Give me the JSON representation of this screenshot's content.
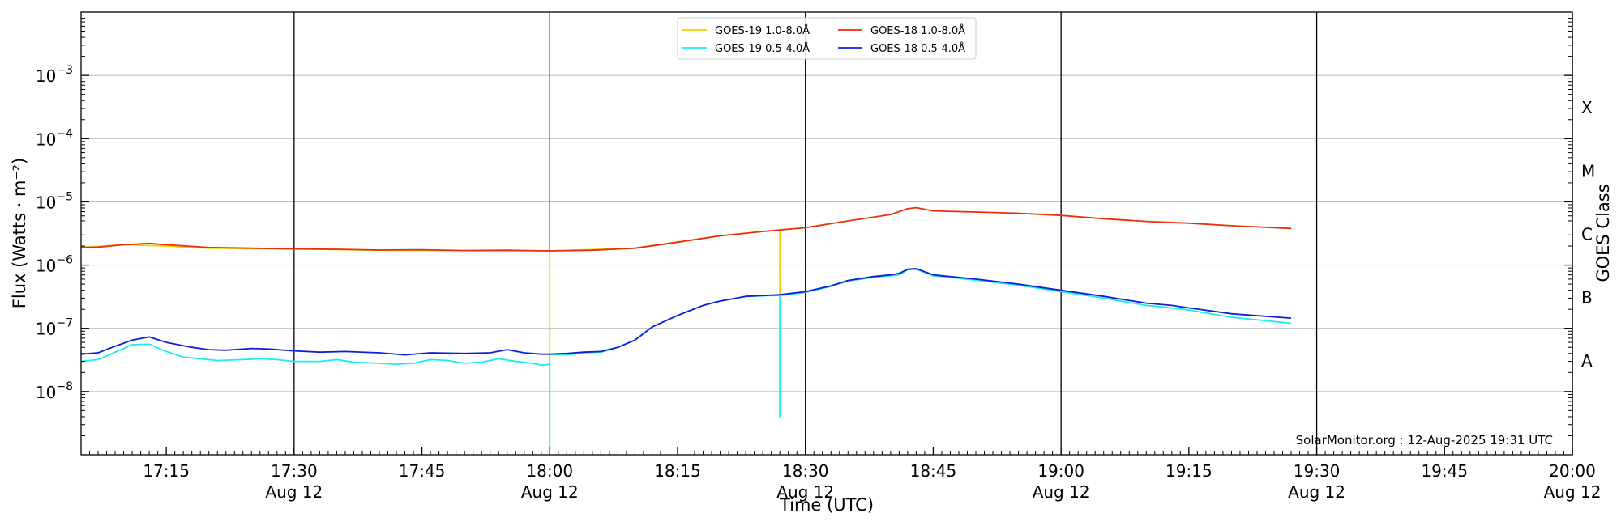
{
  "chart_data": {
    "type": "line",
    "xlabel": "Time (UTC)",
    "ylabel": "Flux (Watts · m⁻²)",
    "right_label": "GOES Class",
    "y_scale": "log",
    "ylim": [
      1e-09,
      0.01
    ],
    "xlim": [
      "2025-08-12 17:05",
      "2025-08-12 20:00"
    ],
    "grid": "horizontal at decades; vertical lines every 30 minutes",
    "legend_position": "top-center",
    "x_ticks": [
      {
        "time": "17:15",
        "date": ""
      },
      {
        "time": "17:30",
        "date": "Aug 12"
      },
      {
        "time": "17:45",
        "date": ""
      },
      {
        "time": "18:00",
        "date": "Aug 12"
      },
      {
        "time": "18:15",
        "date": ""
      },
      {
        "time": "18:30",
        "date": "Aug 12"
      },
      {
        "time": "18:45",
        "date": ""
      },
      {
        "time": "19:00",
        "date": "Aug 12"
      },
      {
        "time": "19:15",
        "date": ""
      },
      {
        "time": "19:30",
        "date": "Aug 12"
      },
      {
        "time": "19:45",
        "date": ""
      },
      {
        "time": "20:00",
        "date": "Aug 12"
      }
    ],
    "y_ticks": [
      {
        "exp": "-8",
        "value": 1e-08
      },
      {
        "exp": "-7",
        "value": 1e-07
      },
      {
        "exp": "-6",
        "value": 1e-06
      },
      {
        "exp": "-5",
        "value": 1e-05
      },
      {
        "exp": "-4",
        "value": 0.0001
      },
      {
        "exp": "-3",
        "value": 0.001
      }
    ],
    "goes_classes": [
      "A",
      "B",
      "C",
      "M",
      "X"
    ],
    "series": [
      {
        "name": "GOES-19 1.0-8.0Å",
        "color": "#f2d000",
        "points": [
          [
            "17:05",
            1.9e-06
          ],
          [
            "17:10",
            2.1e-06
          ],
          [
            "17:15",
            2e-06
          ],
          [
            "17:20",
            1.85e-06
          ],
          [
            "17:30",
            1.8e-06
          ],
          [
            "17:40",
            1.72e-06
          ],
          [
            "17:50",
            1.7e-06
          ],
          [
            "17:59",
            1.68e-06
          ],
          [
            "18:00",
            1.68e-06
          ],
          [
            "18:00",
            1.2e-09
          ],
          [
            "18:00",
            1.68e-06
          ],
          [
            "18:10",
            1.85e-06
          ],
          [
            "18:20",
            2.9e-06
          ],
          [
            "18:26",
            3.5e-06
          ],
          [
            "18:27",
            3.6e-06
          ],
          [
            "18:27",
            4e-09
          ],
          [
            "18:27",
            3.6e-06
          ],
          [
            "18:30",
            3.9e-06
          ]
        ]
      },
      {
        "name": "GOES-18 1.0-8.0Å",
        "color": "#e8300a",
        "points": [
          [
            "17:05",
            1.9e-06
          ],
          [
            "17:07",
            1.92e-06
          ],
          [
            "17:10",
            2.1e-06
          ],
          [
            "17:13",
            2.2e-06
          ],
          [
            "17:15",
            2.1e-06
          ],
          [
            "17:20",
            1.9e-06
          ],
          [
            "17:25",
            1.85e-06
          ],
          [
            "17:30",
            1.8e-06
          ],
          [
            "17:35",
            1.78e-06
          ],
          [
            "17:40",
            1.73e-06
          ],
          [
            "17:45",
            1.75e-06
          ],
          [
            "17:50",
            1.7e-06
          ],
          [
            "17:55",
            1.72e-06
          ],
          [
            "18:00",
            1.68e-06
          ],
          [
            "18:05",
            1.72e-06
          ],
          [
            "18:10",
            1.85e-06
          ],
          [
            "18:15",
            2.3e-06
          ],
          [
            "18:20",
            2.9e-06
          ],
          [
            "18:25",
            3.4e-06
          ],
          [
            "18:30",
            3.9e-06
          ],
          [
            "18:35",
            5e-06
          ],
          [
            "18:40",
            6.3e-06
          ],
          [
            "18:42",
            7.8e-06
          ],
          [
            "18:43",
            8.1e-06
          ],
          [
            "18:45",
            7.2e-06
          ],
          [
            "18:50",
            6.9e-06
          ],
          [
            "18:55",
            6.6e-06
          ],
          [
            "19:00",
            6.1e-06
          ],
          [
            "19:05",
            5.4e-06
          ],
          [
            "19:10",
            4.9e-06
          ],
          [
            "19:15",
            4.6e-06
          ],
          [
            "19:20",
            4.2e-06
          ],
          [
            "19:27",
            3.8e-06
          ]
        ]
      },
      {
        "name": "GOES-19 0.5-4.0Å",
        "color": "#19ecef",
        "points": [
          [
            "17:05",
            3e-08
          ],
          [
            "17:07",
            3.2e-08
          ],
          [
            "17:09",
            4.2e-08
          ],
          [
            "17:11",
            5.5e-08
          ],
          [
            "17:13",
            5.6e-08
          ],
          [
            "17:15",
            4.3e-08
          ],
          [
            "17:17",
            3.5e-08
          ],
          [
            "17:19",
            3.3e-08
          ],
          [
            "17:21",
            3.1e-08
          ],
          [
            "17:24",
            3.2e-08
          ],
          [
            "17:26",
            3.3e-08
          ],
          [
            "17:28",
            3.2e-08
          ],
          [
            "17:30",
            3e-08
          ],
          [
            "17:33",
            3e-08
          ],
          [
            "17:35",
            3.2e-08
          ],
          [
            "17:37",
            2.9e-08
          ],
          [
            "17:40",
            2.8e-08
          ],
          [
            "17:42",
            2.7e-08
          ],
          [
            "17:44",
            2.8e-08
          ],
          [
            "17:46",
            3.2e-08
          ],
          [
            "17:48",
            3.1e-08
          ],
          [
            "17:50",
            2.8e-08
          ],
          [
            "17:52",
            2.9e-08
          ],
          [
            "17:54",
            3.3e-08
          ],
          [
            "17:56",
            3e-08
          ],
          [
            "17:58",
            2.8e-08
          ],
          [
            "17:59",
            2.6e-08
          ],
          [
            "18:00",
            2.7e-08
          ],
          [
            "18:00",
            1.2e-09
          ],
          [
            "18:00",
            3.9e-08
          ],
          [
            "18:02",
            3.8e-08
          ],
          [
            "18:04",
            4.1e-08
          ],
          [
            "18:06",
            4.2e-08
          ],
          [
            "18:08",
            5e-08
          ],
          [
            "18:10",
            6.5e-08
          ],
          [
            "18:12",
            1.05e-07
          ],
          [
            "18:15",
            1.6e-07
          ],
          [
            "18:18",
            2.3e-07
          ],
          [
            "18:20",
            2.7e-07
          ],
          [
            "18:23",
            3.2e-07
          ],
          [
            "18:26",
            3.3e-07
          ],
          [
            "18:27",
            3.3e-07
          ],
          [
            "18:27",
            4e-09
          ],
          [
            "18:27",
            3.3e-07
          ],
          [
            "18:30",
            3.7e-07
          ],
          [
            "18:33",
            4.6e-07
          ],
          [
            "18:35",
            5.6e-07
          ],
          [
            "18:38",
            6.4e-07
          ],
          [
            "18:40",
            6.8e-07
          ],
          [
            "18:41",
            7e-07
          ],
          [
            "18:42",
            8.4e-07
          ],
          [
            "18:43",
            8.6e-07
          ],
          [
            "18:45",
            6.8e-07
          ],
          [
            "18:50",
            5.8e-07
          ],
          [
            "18:55",
            4.8e-07
          ],
          [
            "19:00",
            3.8e-07
          ],
          [
            "19:05",
            3e-07
          ],
          [
            "19:10",
            2.3e-07
          ],
          [
            "19:13",
            2.1e-07
          ],
          [
            "19:15",
            1.95e-07
          ],
          [
            "19:20",
            1.5e-07
          ],
          [
            "19:27",
            1.2e-07
          ]
        ]
      },
      {
        "name": "GOES-18 0.5-4.0Å",
        "color": "#1020d8",
        "points": [
          [
            "17:05",
            3.9e-08
          ],
          [
            "17:07",
            4.1e-08
          ],
          [
            "17:09",
            5.2e-08
          ],
          [
            "17:11",
            6.5e-08
          ],
          [
            "17:13",
            7.3e-08
          ],
          [
            "17:15",
            6e-08
          ],
          [
            "17:18",
            5e-08
          ],
          [
            "17:20",
            4.6e-08
          ],
          [
            "17:22",
            4.5e-08
          ],
          [
            "17:25",
            4.8e-08
          ],
          [
            "17:27",
            4.7e-08
          ],
          [
            "17:30",
            4.4e-08
          ],
          [
            "17:33",
            4.2e-08
          ],
          [
            "17:36",
            4.3e-08
          ],
          [
            "17:40",
            4.1e-08
          ],
          [
            "17:43",
            3.8e-08
          ],
          [
            "17:46",
            4.1e-08
          ],
          [
            "17:50",
            4e-08
          ],
          [
            "17:53",
            4.1e-08
          ],
          [
            "17:55",
            4.6e-08
          ],
          [
            "17:57",
            4.1e-08
          ],
          [
            "17:59",
            3.9e-08
          ],
          [
            "18:00",
            3.9e-08
          ],
          [
            "18:02",
            4e-08
          ],
          [
            "18:04",
            4.2e-08
          ],
          [
            "18:06",
            4.3e-08
          ],
          [
            "18:08",
            5e-08
          ],
          [
            "18:10",
            6.5e-08
          ],
          [
            "18:12",
            1.05e-07
          ],
          [
            "18:15",
            1.6e-07
          ],
          [
            "18:18",
            2.3e-07
          ],
          [
            "18:20",
            2.7e-07
          ],
          [
            "18:23",
            3.2e-07
          ],
          [
            "18:27",
            3.4e-07
          ],
          [
            "18:30",
            3.8e-07
          ],
          [
            "18:33",
            4.7e-07
          ],
          [
            "18:35",
            5.7e-07
          ],
          [
            "18:38",
            6.6e-07
          ],
          [
            "18:40",
            7e-07
          ],
          [
            "18:41",
            7.4e-07
          ],
          [
            "18:42",
            8.6e-07
          ],
          [
            "18:43",
            8.8e-07
          ],
          [
            "18:45",
            7e-07
          ],
          [
            "18:50",
            6e-07
          ],
          [
            "18:55",
            5e-07
          ],
          [
            "19:00",
            4e-07
          ],
          [
            "19:05",
            3.2e-07
          ],
          [
            "19:10",
            2.5e-07
          ],
          [
            "19:13",
            2.3e-07
          ],
          [
            "19:15",
            2.1e-07
          ],
          [
            "19:20",
            1.7e-07
          ],
          [
            "19:27",
            1.45e-07
          ]
        ]
      }
    ],
    "legend_order": [
      0,
      2,
      1,
      3
    ],
    "annotation": "SolarMonitor.org : 12-Aug-2025 19:31 UTC"
  }
}
